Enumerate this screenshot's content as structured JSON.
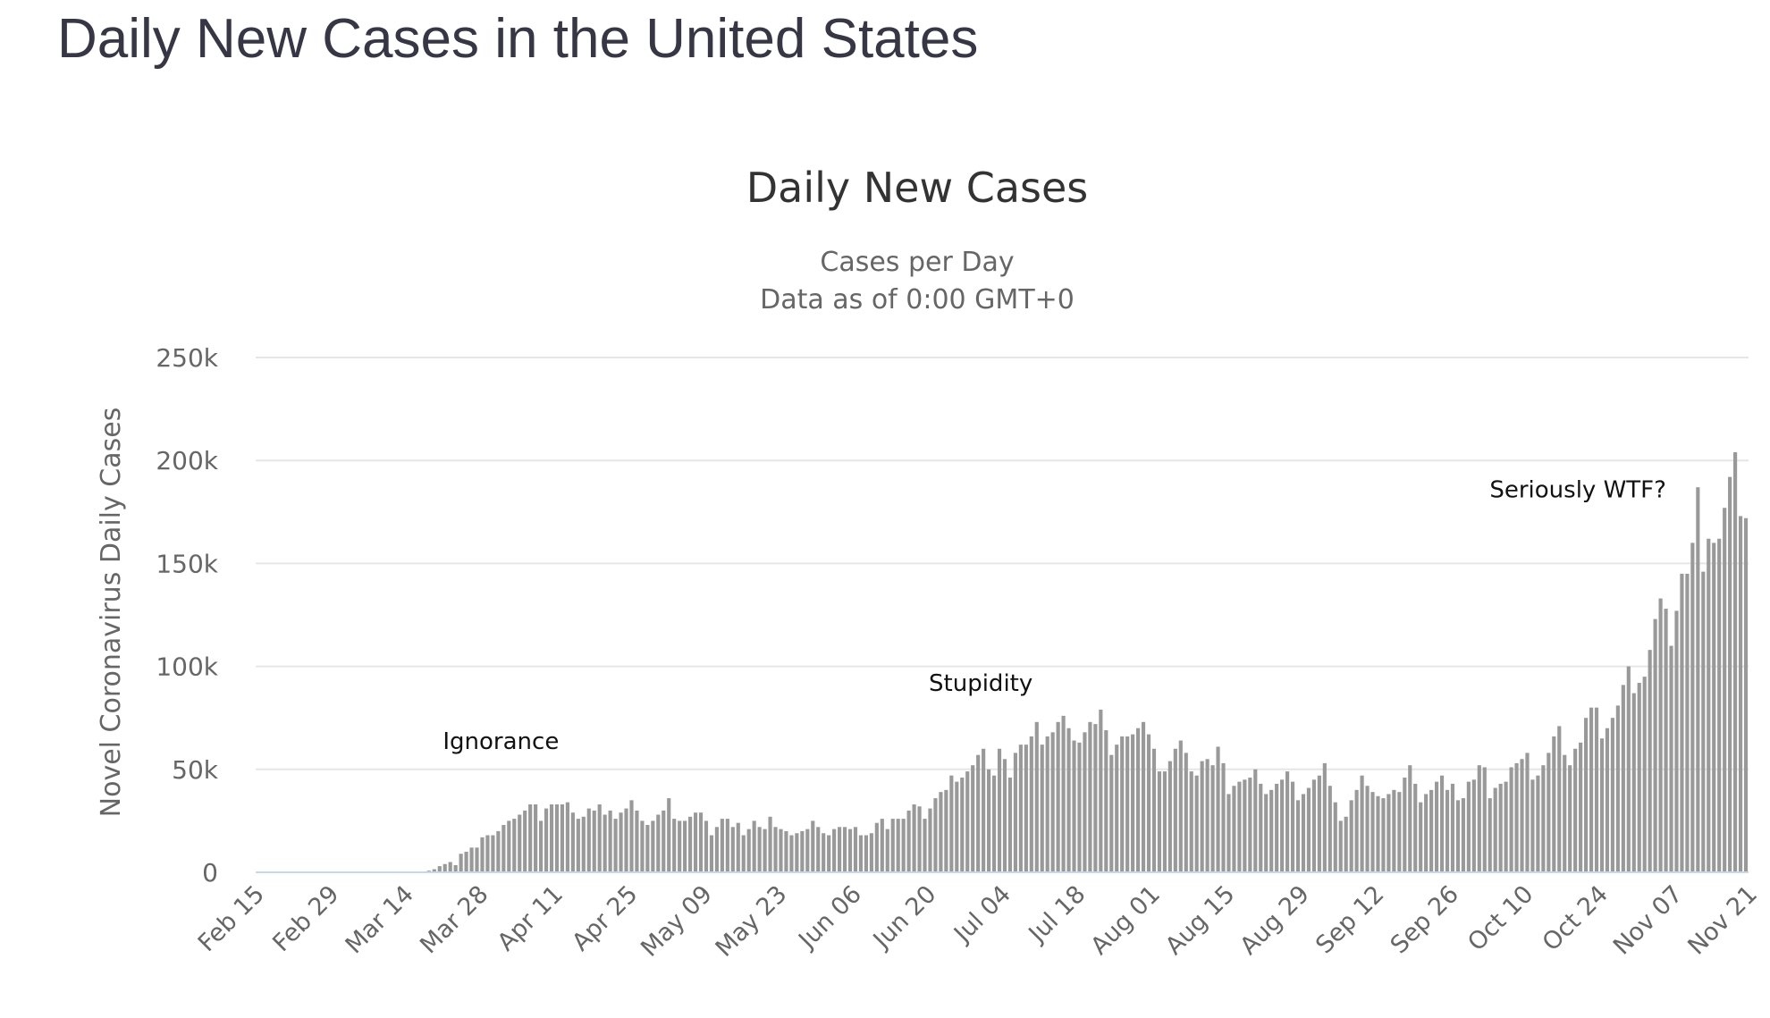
{
  "page": {
    "title": "Daily New Cases in the United States"
  },
  "chart_data": {
    "type": "bar",
    "title": "Daily New Cases",
    "subtitle": [
      "Cases per Day",
      "Data as of 0:00 GMT+0"
    ],
    "xlabel": "",
    "ylabel": "Novel Coronavirus Daily Cases",
    "ylim": [
      0,
      250000
    ],
    "yticks": [
      0,
      50000,
      100000,
      150000,
      200000,
      250000
    ],
    "ytick_labels": [
      "0",
      "50k",
      "100k",
      "150k",
      "200k",
      "250k"
    ],
    "grid": true,
    "start_date": "Feb 15",
    "xtick_labels": [
      "Feb 15",
      "Feb 29",
      "Mar 14",
      "Mar 28",
      "Apr 11",
      "Apr 25",
      "May 09",
      "May 23",
      "Jun 06",
      "Jun 20",
      "Jul 04",
      "Jul 18",
      "Aug 01",
      "Aug 15",
      "Aug 29",
      "Sep 12",
      "Sep 26",
      "Oct 10",
      "Oct 24",
      "Nov 07",
      "Nov 21"
    ],
    "xtick_interval_days": 14,
    "bar_color": "#999999",
    "annotations": [
      {
        "text": "Ignorance",
        "day": 46,
        "value": 60000
      },
      {
        "text": "Stupidity",
        "day": 136,
        "value": 88000
      },
      {
        "text": "Seriously WTF?",
        "day": 248,
        "value": 182000
      }
    ],
    "values_thousands": [
      0,
      0,
      0,
      0,
      0,
      0,
      0,
      0,
      0,
      0,
      0,
      0,
      0,
      0,
      0,
      0,
      0,
      0,
      0,
      0,
      0,
      0,
      0,
      0,
      0,
      0,
      0,
      0,
      0,
      0,
      0.2,
      0.4,
      0.8,
      1.5,
      3,
      4,
      5,
      3.5,
      9,
      10,
      12,
      12,
      17,
      18,
      18,
      20,
      23,
      25,
      26,
      28,
      30,
      33,
      33,
      25,
      31,
      33,
      33,
      33,
      34,
      29,
      26,
      27,
      31,
      30,
      33,
      28,
      30,
      26,
      29,
      31,
      35,
      30,
      25,
      23,
      25,
      28,
      30,
      36,
      26,
      25,
      25,
      27,
      29,
      29,
      25,
      18,
      22,
      26,
      26,
      22,
      24,
      18,
      21,
      25,
      22,
      21,
      27,
      22,
      21,
      20,
      18,
      19,
      20,
      21,
      25,
      22,
      19,
      18,
      21,
      22,
      22,
      21,
      22,
      18,
      18,
      19,
      24,
      26,
      21,
      26,
      26,
      26,
      30,
      33,
      32,
      26,
      31,
      36,
      39,
      40,
      47,
      44,
      46,
      49,
      52,
      57,
      60,
      50,
      47,
      60,
      55,
      46,
      58,
      62,
      62,
      66,
      73,
      62,
      66,
      68,
      73,
      76,
      70,
      64,
      63,
      68,
      73,
      72,
      79,
      69,
      57,
      62,
      66,
      66,
      67,
      70,
      73,
      67,
      60,
      49,
      49,
      54,
      60,
      64,
      58,
      49,
      47,
      54,
      55,
      52,
      61,
      53,
      38,
      42,
      44,
      45,
      46,
      50,
      43,
      38,
      40,
      43,
      45,
      49,
      44,
      35,
      38,
      41,
      45,
      47,
      53,
      42,
      34,
      25,
      27,
      35,
      40,
      47,
      42,
      39,
      37,
      36,
      38,
      40,
      39,
      46,
      52,
      43,
      34,
      38,
      40,
      44,
      47,
      40,
      43,
      35,
      36,
      44,
      45,
      52,
      51,
      36,
      41,
      43,
      44,
      51,
      53,
      55,
      58,
      45,
      47,
      52,
      58,
      66,
      71,
      57,
      52,
      60,
      63,
      75,
      80,
      80,
      65,
      70,
      75,
      81,
      91,
      100,
      87,
      92,
      95,
      108,
      123,
      133,
      128,
      110,
      127,
      145,
      145,
      160,
      187,
      146,
      162,
      160,
      162,
      177,
      192,
      204,
      173,
      172
    ]
  }
}
